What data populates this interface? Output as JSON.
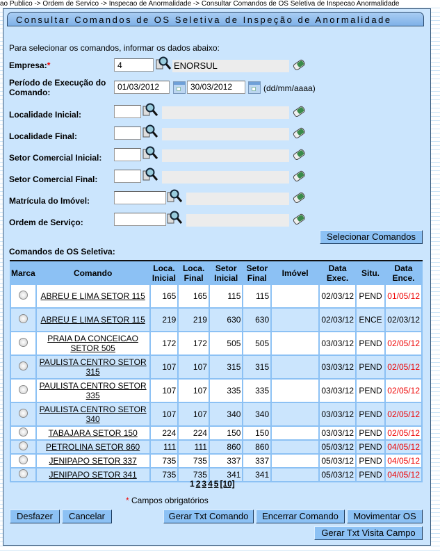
{
  "breadcrumb": "ao Publico -> Ordem de Servico -> Inspecao de Anormalidade -> Consultar Comandos de OS Seletiva de Inspecao Anormalidade",
  "title": "Consultar Comandos de OS Seletiva de Inspeção de Anormalidade",
  "intro": "Para selecionar os comandos, informar os dados abaixo:",
  "form": {
    "empresa_label": "Empresa:",
    "required_mark": "*",
    "empresa_value": "4",
    "empresa_name": "ENORSUL",
    "periodo_label_1": "Período de Execução do",
    "periodo_label_2": "Comando:",
    "periodo_inicio": "01/03/2012",
    "periodo_fim": "30/03/2012",
    "date_hint": "(dd/mm/aaaa)",
    "localidade_inicial_label": "Localidade Inicial:",
    "localidade_final_label": "Localidade Final:",
    "setor_inicial_label": "Setor Comercial Inicial:",
    "setor_final_label": "Setor Comercial Final:",
    "matricula_label": "Matrícula do Imóvel:",
    "ordem_label": "Ordem de Serviço:"
  },
  "select_button": "Selecionar Comandos",
  "table_title": "Comandos de OS Seletiva:",
  "columns": [
    "Marca",
    "Comando",
    "Loca. Inicial",
    "Loca. Final",
    "Setor Inicial",
    "Setor Final",
    "Imóvel",
    "Data Exec.",
    "Situ.",
    "Data Ence."
  ],
  "rows": [
    {
      "comando": "ABREU E LIMA SETOR 115",
      "loc_ini": "165",
      "loc_fin": "165",
      "set_ini": "115",
      "set_fin": "115",
      "imovel": "",
      "exec": "02/03/12",
      "situ": "PEND",
      "ence": "01/05/12"
    },
    {
      "comando": "ABREU E LIMA SETOR 115",
      "loc_ini": "219",
      "loc_fin": "219",
      "set_ini": "630",
      "set_fin": "630",
      "imovel": "",
      "exec": "02/03/12",
      "situ": "ENCE",
      "ence": "02/03/12"
    },
    {
      "comando": "PRAIA DA CONCEICAO SETOR 505",
      "loc_ini": "172",
      "loc_fin": "172",
      "set_ini": "505",
      "set_fin": "505",
      "imovel": "",
      "exec": "03/03/12",
      "situ": "PEND",
      "ence": "02/05/12"
    },
    {
      "comando": "PAULISTA CENTRO SETOR 315",
      "loc_ini": "107",
      "loc_fin": "107",
      "set_ini": "315",
      "set_fin": "315",
      "imovel": "",
      "exec": "03/03/12",
      "situ": "PEND",
      "ence": "02/05/12"
    },
    {
      "comando": "PAULISTA CENTRO SETOR 335",
      "loc_ini": "107",
      "loc_fin": "107",
      "set_ini": "335",
      "set_fin": "335",
      "imovel": "",
      "exec": "03/03/12",
      "situ": "PEND",
      "ence": "02/05/12"
    },
    {
      "comando": "PAULISTA CENTRO SETOR 340",
      "loc_ini": "107",
      "loc_fin": "107",
      "set_ini": "340",
      "set_fin": "340",
      "imovel": "",
      "exec": "03/03/12",
      "situ": "PEND",
      "ence": "02/05/12"
    },
    {
      "comando": "TABAJARA SETOR 150",
      "loc_ini": "224",
      "loc_fin": "224",
      "set_ini": "150",
      "set_fin": "150",
      "imovel": "",
      "exec": "03/03/12",
      "situ": "PEND",
      "ence": "02/05/12"
    },
    {
      "comando": "PETROLINA SETOR 860",
      "loc_ini": "111",
      "loc_fin": "111",
      "set_ini": "860",
      "set_fin": "860",
      "imovel": "",
      "exec": "05/03/12",
      "situ": "PEND",
      "ence": "04/05/12"
    },
    {
      "comando": "JENIPAPO SETOR 337",
      "loc_ini": "735",
      "loc_fin": "735",
      "set_ini": "337",
      "set_fin": "337",
      "imovel": "",
      "exec": "05/03/12",
      "situ": "PEND",
      "ence": "04/05/12"
    },
    {
      "comando": "JENIPAPO SETOR 341",
      "loc_ini": "735",
      "loc_fin": "735",
      "set_ini": "341",
      "set_fin": "341",
      "imovel": "",
      "exec": "05/03/12",
      "situ": "PEND",
      "ence": "04/05/12"
    }
  ],
  "pager": {
    "current": "1",
    "pages": [
      "2",
      "3",
      "4",
      "5",
      "[10]"
    ]
  },
  "required_note": "Campos obrigatórios",
  "buttons": {
    "desfazer": "Desfazer",
    "cancelar": "Cancelar",
    "gerar_txt": "Gerar Txt Comando",
    "encerrar": "Encerrar Comando",
    "movimentar": "Movimentar OS",
    "gerar_visita": "Gerar Txt Visita Campo"
  },
  "colors": {
    "panel": "#cbe5fd",
    "button": "#8cc1f4",
    "overdue": "#e00000"
  }
}
